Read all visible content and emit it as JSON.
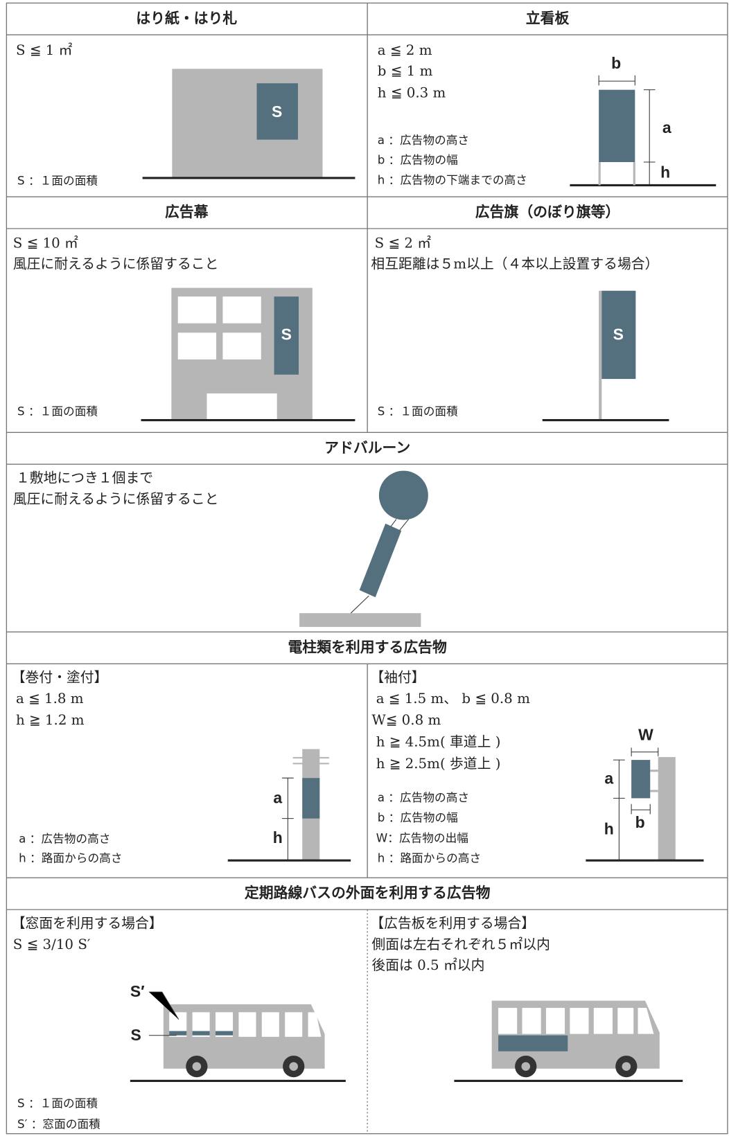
{
  "harigami": {
    "title": "はり紙・はり札",
    "lines": [
      "S ≦ 1 ㎡"
    ],
    "label": "S",
    "notes": [
      "S ：１面の面積"
    ]
  },
  "tatekanban": {
    "title": "立看板",
    "lines": [
      "a ≦ 2 m",
      "b ≦ 1 m",
      "h ≦ 0.3 m"
    ],
    "notes": [
      "a ：広告物の高さ",
      "b ：広告物の幅",
      "h ：広告物の下端までの高さ"
    ],
    "labels": [
      "b",
      "a",
      "h"
    ]
  },
  "kokokumaku": {
    "title": "広告幕",
    "lines": [
      "S ≦ 10 ㎡",
      "風圧に耐えるように係留すること"
    ],
    "label": "S",
    "notes": [
      "S ：１面の面積"
    ]
  },
  "kokokuki": {
    "title": "広告旗（のぼり旗等）",
    "lines": [
      "S ≦ 2 ㎡",
      "相互距離は５m以上（４本以上設置する場合）"
    ],
    "label": "S",
    "notes": [
      "S ：１面の面積"
    ]
  },
  "adballoon": {
    "title": "アドバルーン",
    "lines": [
      "１敷地につき１個まで",
      "風圧に耐えるように係留すること"
    ]
  },
  "denchu": {
    "title": "電柱類を利用する広告物",
    "left": {
      "heading": "【巻付・塗付】",
      "lines": [
        "a ≦ 1.8 m",
        "h ≧ 1.2 m"
      ],
      "notes": [
        "a ：広告物の高さ",
        "h ：路面からの高さ"
      ],
      "labels": [
        "a",
        "h"
      ]
    },
    "right": {
      "heading": "【袖付】",
      "lines": [
        "a ≦ 1.5 m、 b ≦ 0.8 m",
        "W≦ 0.8 m",
        "h ≧ 4.5m( 車道上 )",
        "h ≧ 2.5m( 歩道上 )"
      ],
      "notes": [
        "a ：広告物の高さ",
        "b ：広告物の幅",
        "W：広告物の出幅",
        "h ：路面からの高さ"
      ],
      "labels": [
        "W",
        "a",
        "h",
        "b"
      ]
    }
  },
  "bus": {
    "title": "定期路線バスの外面を利用する広告物",
    "left": {
      "heading": "【窓面を利用する場合】",
      "lines": [
        "S ≦ 3/10 S′"
      ],
      "labels": [
        "S′",
        "S"
      ],
      "notes": [
        "S ：１面の面積",
        "S′ ：窓面の面積"
      ]
    },
    "right": {
      "heading": "【広告板を利用する場合】",
      "lines": [
        "側面は左右それぞれ５㎡以内",
        "後面は 0.5 ㎡以内"
      ]
    }
  }
}
